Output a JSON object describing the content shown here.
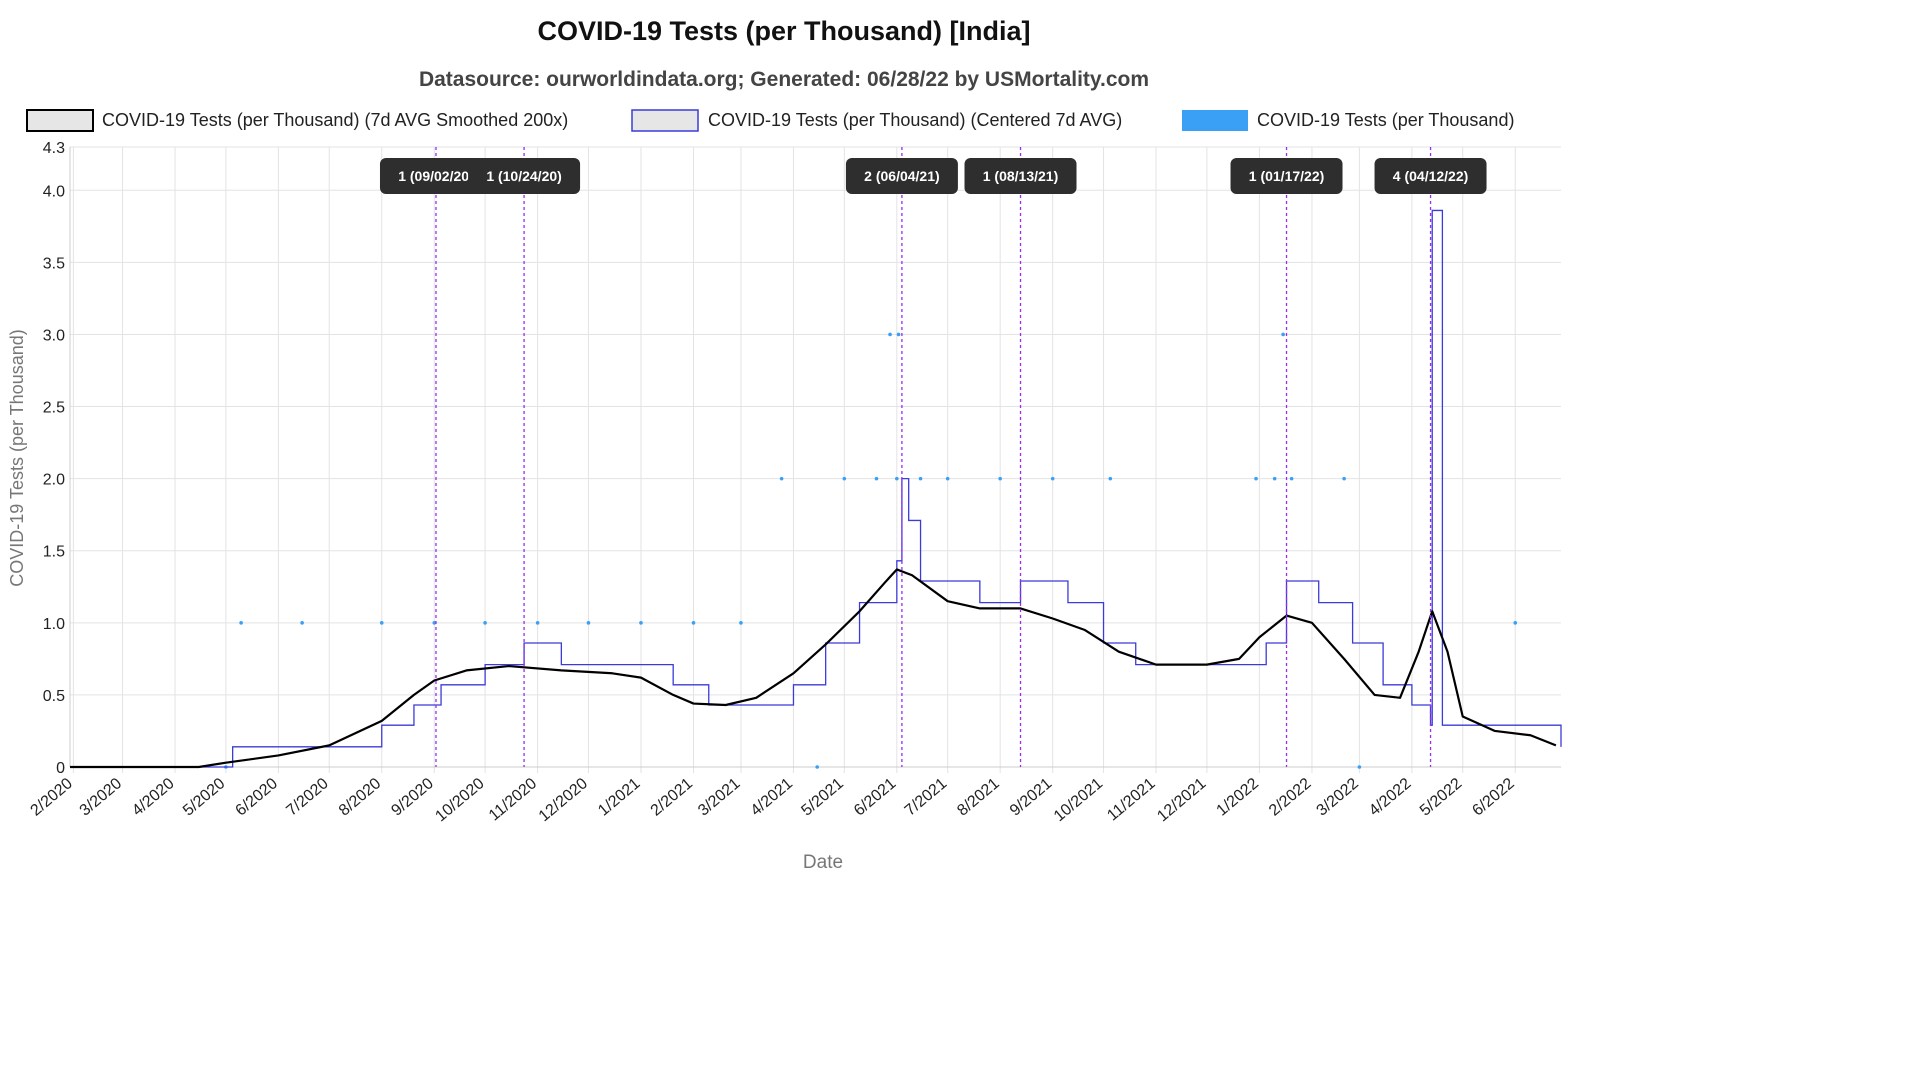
{
  "title": "COVID-19 Tests (per Thousand) [India]",
  "subtitle": "Datasource: ourworldindata.org; Generated: 06/28/22 by USMortality.com",
  "colors": {
    "smoothed_line": "#000000",
    "centered_line": "#3b3bd9",
    "daily_points": "#3aa0f5",
    "annotation_line": "#9b2cf0",
    "annotation_box": "#2e2e2e",
    "grid": "#e3e3e3"
  },
  "chart_data": {
    "type": "line",
    "title": "COVID-19 Tests (per Thousand) [India]",
    "subtitle": "Datasource: ourworldindata.org; Generated: 06/28/22 by USMortality.com",
    "xlabel": "Date",
    "ylabel": "COVID-19 Tests (per Thousand)",
    "ylim": [
      0,
      4.3
    ],
    "y_ticks": [
      0,
      0.5,
      1.0,
      1.5,
      2.0,
      2.5,
      3.0,
      3.5,
      4.0,
      4.3
    ],
    "y_tick_labels": [
      "0",
      "0.5",
      "1.0",
      "1.5",
      "2.0",
      "2.5",
      "3.0",
      "3.5",
      "4.0",
      "4.3"
    ],
    "x_range": [
      "2020-01-30",
      "2022-06-28"
    ],
    "x_tick_labels": [
      "2/2020",
      "3/2020",
      "4/2020",
      "5/2020",
      "6/2020",
      "7/2020",
      "8/2020",
      "9/2020",
      "10/2020",
      "11/2020",
      "12/2020",
      "1/2021",
      "2/2021",
      "3/2021",
      "4/2021",
      "5/2021",
      "6/2021",
      "7/2021",
      "8/2021",
      "9/2021",
      "10/2021",
      "11/2021",
      "12/2021",
      "1/2022",
      "2/2022",
      "3/2022",
      "4/2022",
      "5/2022",
      "6/2022"
    ],
    "x_tick_dates": [
      "2020-02-01",
      "2020-03-01",
      "2020-04-01",
      "2020-05-01",
      "2020-06-01",
      "2020-07-01",
      "2020-08-01",
      "2020-09-01",
      "2020-10-01",
      "2020-11-01",
      "2020-12-01",
      "2021-01-01",
      "2021-02-01",
      "2021-03-01",
      "2021-04-01",
      "2021-05-01",
      "2021-06-01",
      "2021-07-01",
      "2021-08-01",
      "2021-09-01",
      "2021-10-01",
      "2021-11-01",
      "2021-12-01",
      "2022-01-01",
      "2022-02-01",
      "2022-03-01",
      "2022-04-01",
      "2022-05-01",
      "2022-06-01"
    ],
    "grid": true,
    "legend_position": "top",
    "series": [
      {
        "name": "COVID-19 Tests (per Thousand) (7d AVG Smoothed 200x)",
        "style": "line",
        "x": [
          "2020-01-30",
          "2020-04-15",
          "2020-05-01",
          "2020-06-01",
          "2020-07-01",
          "2020-08-01",
          "2020-08-20",
          "2020-09-01",
          "2020-09-20",
          "2020-10-15",
          "2020-11-15",
          "2020-12-15",
          "2021-01-01",
          "2021-01-20",
          "2021-02-01",
          "2021-02-20",
          "2021-03-10",
          "2021-04-01",
          "2021-04-20",
          "2021-05-10",
          "2021-05-25",
          "2021-06-01",
          "2021-06-10",
          "2021-07-01",
          "2021-07-20",
          "2021-08-13",
          "2021-09-01",
          "2021-09-20",
          "2021-10-10",
          "2021-11-01",
          "2021-12-01",
          "2021-12-20",
          "2022-01-01",
          "2022-01-17",
          "2022-02-01",
          "2022-02-20",
          "2022-03-10",
          "2022-03-25",
          "2022-04-05",
          "2022-04-13",
          "2022-04-22",
          "2022-05-01",
          "2022-05-20",
          "2022-06-10",
          "2022-06-25"
        ],
        "y": [
          0,
          0,
          0.03,
          0.08,
          0.15,
          0.32,
          0.5,
          0.6,
          0.67,
          0.7,
          0.67,
          0.65,
          0.62,
          0.5,
          0.44,
          0.43,
          0.48,
          0.65,
          0.85,
          1.08,
          1.28,
          1.37,
          1.33,
          1.15,
          1.1,
          1.1,
          1.03,
          0.95,
          0.8,
          0.71,
          0.71,
          0.75,
          0.9,
          1.05,
          1.0,
          0.75,
          0.5,
          0.48,
          0.8,
          1.08,
          0.8,
          0.35,
          0.25,
          0.22,
          0.15
        ]
      },
      {
        "name": "COVID-19 Tests (per Thousand) (Centered 7d AVG)",
        "style": "step-line",
        "x": [
          "2020-01-30",
          "2020-05-05",
          "2020-06-01",
          "2020-07-01",
          "2020-08-01",
          "2020-08-20",
          "2020-09-05",
          "2020-10-01",
          "2020-10-24",
          "2020-11-15",
          "2020-12-15",
          "2021-01-05",
          "2021-01-20",
          "2021-02-10",
          "2021-03-01",
          "2021-03-20",
          "2021-04-01",
          "2021-04-20",
          "2021-05-10",
          "2021-05-25",
          "2021-06-01",
          "2021-06-04",
          "2021-06-08",
          "2021-06-15",
          "2021-07-01",
          "2021-07-20",
          "2021-08-13",
          "2021-09-10",
          "2021-10-01",
          "2021-10-20",
          "2021-11-15",
          "2021-12-15",
          "2022-01-05",
          "2022-01-17",
          "2022-02-05",
          "2022-02-25",
          "2022-03-15",
          "2022-04-01",
          "2022-04-12",
          "2022-04-13",
          "2022-04-18",
          "2022-04-19",
          "2022-05-15",
          "2022-06-15",
          "2022-06-28"
        ],
        "y": [
          0,
          0.14,
          0.14,
          0.14,
          0.29,
          0.43,
          0.57,
          0.71,
          0.86,
          0.71,
          0.71,
          0.71,
          0.57,
          0.43,
          0.43,
          0.43,
          0.57,
          0.86,
          1.14,
          1.14,
          1.43,
          2.0,
          1.71,
          1.29,
          1.29,
          1.14,
          1.29,
          1.14,
          0.86,
          0.71,
          0.71,
          0.71,
          0.86,
          1.29,
          1.14,
          0.86,
          0.57,
          0.43,
          0.29,
          3.86,
          3.86,
          0.29,
          0.29,
          0.29,
          0.14
        ]
      },
      {
        "name": "COVID-19 Tests (per Thousand)",
        "style": "points",
        "x": [
          "2020-05-10",
          "2020-06-15",
          "2020-08-01",
          "2020-09-01",
          "2020-10-01",
          "2020-11-01",
          "2020-12-01",
          "2021-01-01",
          "2021-02-01",
          "2021-03-01",
          "2021-03-25",
          "2021-05-01",
          "2021-05-20",
          "2021-06-01",
          "2021-06-15",
          "2021-07-01",
          "2021-08-01",
          "2021-09-01",
          "2021-10-05",
          "2021-12-30",
          "2022-01-10",
          "2022-01-20",
          "2022-02-20",
          "2021-05-28",
          "2021-06-02",
          "2022-01-15",
          "2020-05-01",
          "2021-04-15",
          "2022-03-01",
          "2022-06-01"
        ],
        "y": [
          1,
          1,
          1,
          1,
          1,
          1,
          1,
          1,
          1,
          1,
          2,
          2,
          2,
          2,
          2,
          2,
          2,
          2,
          2,
          2,
          2,
          2,
          2,
          3,
          3,
          3,
          0,
          0,
          0,
          1
        ]
      }
    ],
    "annotations": [
      {
        "label": "1 (09/02/20)",
        "date": "2020-09-02"
      },
      {
        "label": "1 (10/24/20)",
        "date": "2020-10-24"
      },
      {
        "label": "2 (06/04/21)",
        "date": "2021-06-04"
      },
      {
        "label": "1 (08/13/21)",
        "date": "2021-08-13"
      },
      {
        "label": "1 (01/17/22)",
        "date": "2022-01-17"
      },
      {
        "label": "4 (04/12/22)",
        "date": "2022-04-12"
      }
    ]
  }
}
